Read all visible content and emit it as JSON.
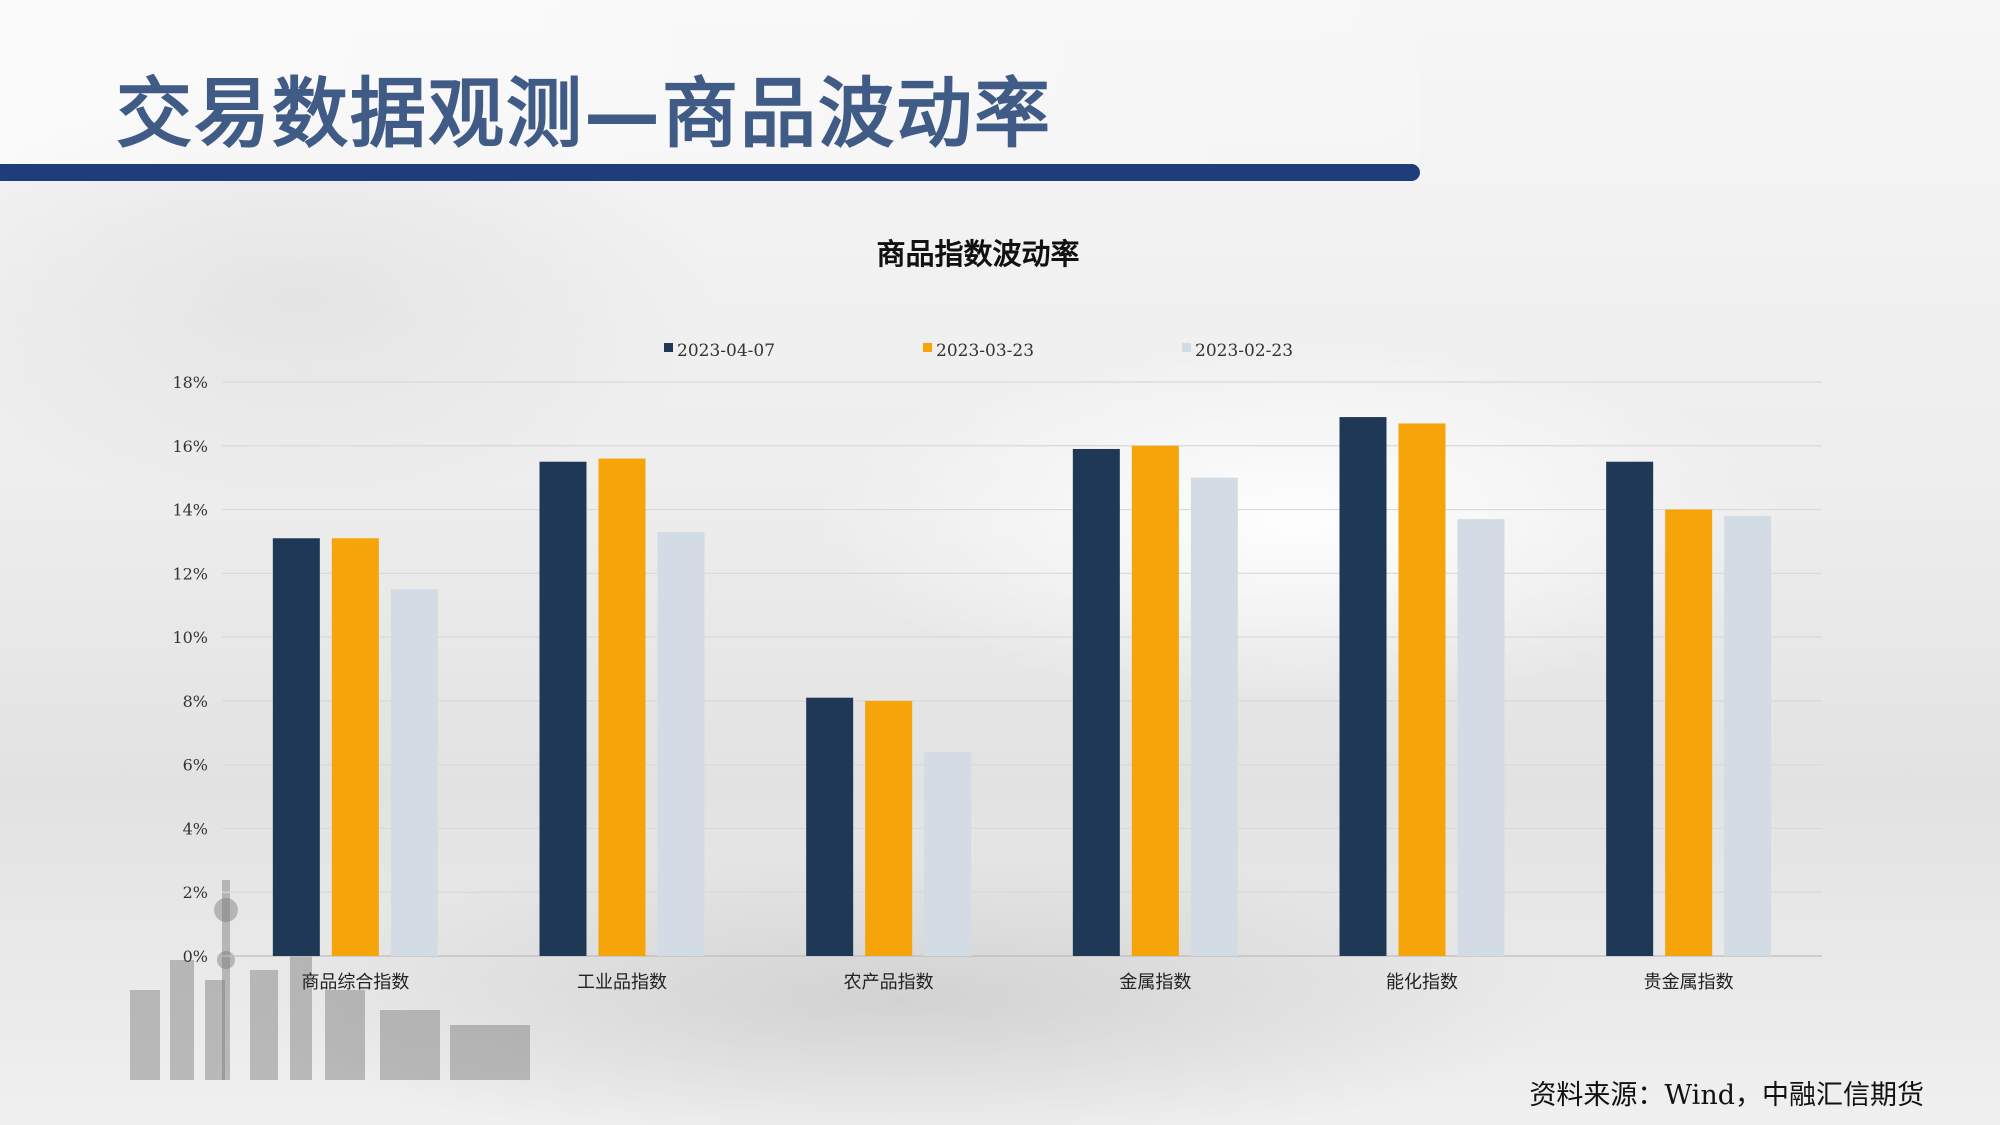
{
  "page": {
    "title": "交易数据观测—商品波动率",
    "source": "资料来源：Wind，中融汇信期货"
  },
  "colors": {
    "title_text": "#3f5b86",
    "title_bar": "#1f3d7a",
    "series": [
      "#1e3856",
      "#f7a30a",
      "#d3dce4"
    ]
  },
  "chart_data": {
    "type": "bar",
    "title": "商品指数波动率",
    "xlabel": "",
    "ylabel": "",
    "categories": [
      "商品综合指数",
      "工业品指数",
      "农产品指数",
      "金属指数",
      "能化指数",
      "贵金属指数"
    ],
    "series": [
      {
        "name": "2023-04-07",
        "values": [
          13.1,
          15.5,
          8.1,
          15.9,
          16.9,
          15.5
        ]
      },
      {
        "name": "2023-03-23",
        "values": [
          13.1,
          15.6,
          8.0,
          16.0,
          16.7,
          14.0
        ]
      },
      {
        "name": "2023-02-23",
        "values": [
          11.5,
          13.3,
          6.4,
          15.0,
          13.7,
          13.8
        ]
      }
    ],
    "y_ticks": [
      "0%",
      "2%",
      "4%",
      "6%",
      "8%",
      "10%",
      "12%",
      "14%",
      "16%",
      "18%"
    ],
    "ylim": [
      0,
      18
    ],
    "y_unit": "%",
    "grid": true,
    "legend_position": "top"
  }
}
